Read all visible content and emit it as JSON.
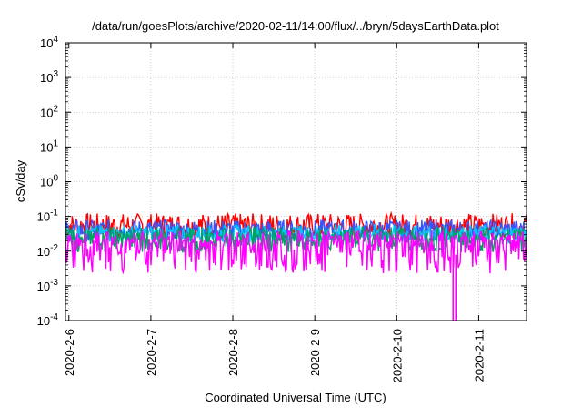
{
  "chart_data": {
    "type": "line",
    "title": "/data/run/goesPlots/archive/2020-02-11/14:00/flux/../bryn/5daysEarthData.plot",
    "xlabel": "Coordinated Universal Time (UTC)",
    "ylabel": "cSv/day",
    "yscale": "log",
    "ylim": [
      0.0001,
      10000
    ],
    "xlim": [
      "2020-02-05 23:00",
      "2020-02-11 14:00"
    ],
    "grid": true,
    "yticks": [
      {
        "value": 0.0001,
        "base": "10",
        "exp": "-4"
      },
      {
        "value": 0.001,
        "base": "10",
        "exp": "-3"
      },
      {
        "value": 0.01,
        "base": "10",
        "exp": "-2"
      },
      {
        "value": 0.1,
        "base": "10",
        "exp": "-1"
      },
      {
        "value": 1,
        "base": "10",
        "exp": "0"
      },
      {
        "value": 10,
        "base": "10",
        "exp": "1"
      },
      {
        "value": 100,
        "base": "10",
        "exp": "2"
      },
      {
        "value": 1000,
        "base": "10",
        "exp": "3"
      },
      {
        "value": 10000,
        "base": "10",
        "exp": "4"
      }
    ],
    "xticks": [
      "2020-2-6",
      "2020-2-7",
      "2020-2-8",
      "2020-2-9",
      "2020-2-10",
      "2020-2-11"
    ],
    "series": [
      {
        "color": "#ff0000",
        "level": 0.055,
        "spread": 0.35
      },
      {
        "color": "#3355ff",
        "level": 0.04,
        "spread": 0.3
      },
      {
        "color": "#00c8ff",
        "level": 0.032,
        "spread": 0.25
      },
      {
        "color": "#00a060",
        "level": 0.018,
        "spread": 0.3
      },
      {
        "color": "#ff00ff",
        "level": 0.008,
        "spread": 0.55
      }
    ]
  }
}
